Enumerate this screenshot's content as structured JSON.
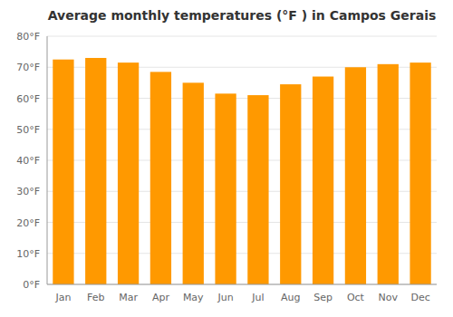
{
  "chart_data": {
    "type": "bar",
    "title": "Average monthly temperatures (°F ) in Campos Gerais",
    "categories": [
      "Jan",
      "Feb",
      "Mar",
      "Apr",
      "May",
      "Jun",
      "Jul",
      "Aug",
      "Sep",
      "Oct",
      "Nov",
      "Dec"
    ],
    "values": [
      72.5,
      73.0,
      71.5,
      68.5,
      65.0,
      61.5,
      61.0,
      64.5,
      67.0,
      70.0,
      71.0,
      71.5
    ],
    "color": "#FF9900",
    "ylim": [
      0,
      80
    ],
    "yticks": [
      {
        "value": 0,
        "label": "0°F"
      },
      {
        "value": 10,
        "label": "10°F"
      },
      {
        "value": 20,
        "label": "20°F"
      },
      {
        "value": 30,
        "label": "30°F"
      },
      {
        "value": 40,
        "label": "40°F"
      },
      {
        "value": 50,
        "label": "50°F"
      },
      {
        "value": 60,
        "label": "60°F"
      },
      {
        "value": 70,
        "label": "70°F"
      },
      {
        "value": 80,
        "label": "80°F"
      }
    ],
    "grid": true
  }
}
